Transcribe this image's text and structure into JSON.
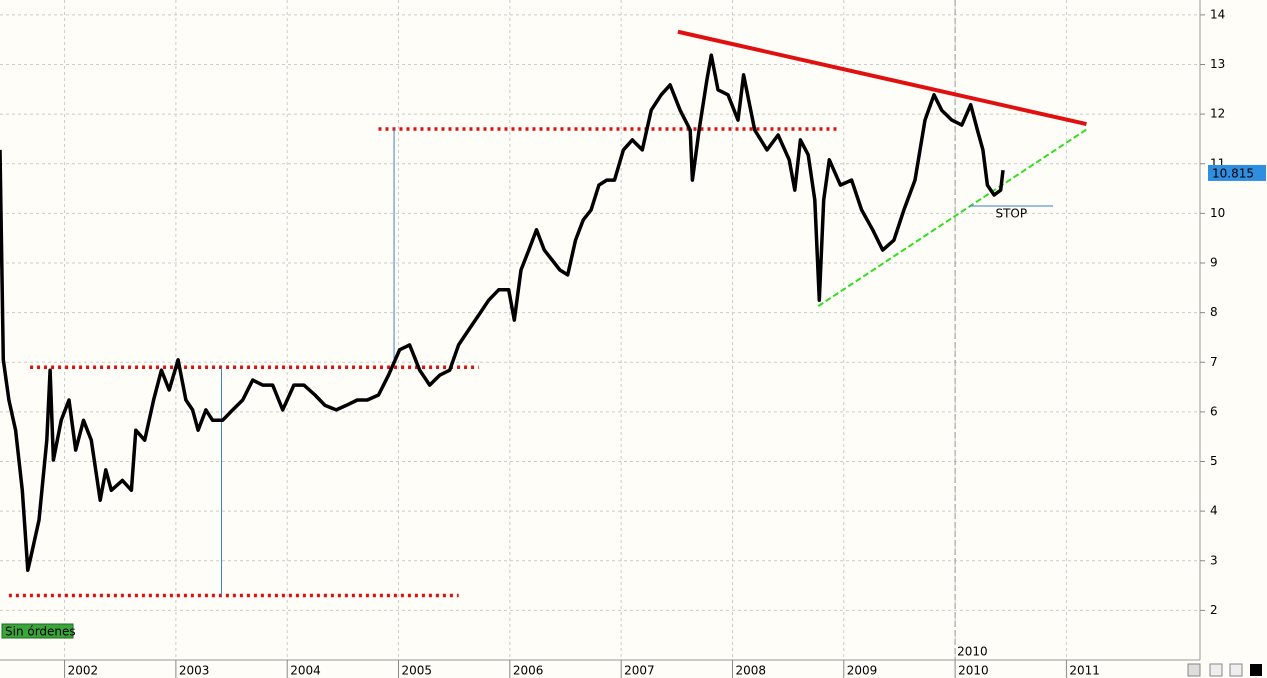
{
  "chart_data": {
    "type": "line",
    "color": "#000000",
    "x": [
      2001.42,
      2001.45,
      2001.5,
      2001.56,
      2001.62,
      2001.67,
      2001.7,
      2001.77,
      2001.84,
      2001.87,
      2001.9,
      2001.97,
      2002.04,
      2002.1,
      2002.17,
      2002.24,
      2002.32,
      2002.37,
      2002.42,
      2002.52,
      2002.6,
      2002.64,
      2002.72,
      2002.8,
      2002.87,
      2002.94,
      2003.02,
      2003.09,
      2003.15,
      2003.2,
      2003.27,
      2003.33,
      2003.42,
      2003.51,
      2003.6,
      2003.69,
      2003.78,
      2003.87,
      2003.96,
      2004.06,
      2004.15,
      2004.25,
      2004.34,
      2004.44,
      2004.53,
      2004.63,
      2004.72,
      2004.82,
      2004.91,
      2005.01,
      2005.1,
      2005.19,
      2005.28,
      2005.37,
      2005.46,
      2005.54,
      2005.63,
      2005.72,
      2005.81,
      2005.9,
      2005.99,
      2006.04,
      2006.1,
      2006.17,
      2006.24,
      2006.31,
      2006.38,
      2006.45,
      2006.52,
      2006.59,
      2006.66,
      2006.73,
      2006.8,
      2006.87,
      2006.94,
      2007.02,
      2007.1,
      2007.19,
      2007.27,
      2007.36,
      2007.44,
      2007.53,
      2007.62,
      2007.64,
      2007.7,
      2007.77,
      2007.81,
      2007.87,
      2007.96,
      2008.05,
      2008.1,
      2008.2,
      2008.31,
      2008.41,
      2008.51,
      2008.56,
      2008.61,
      2008.68,
      2008.74,
      2008.78,
      2008.82,
      2008.87,
      2008.97,
      2009.07,
      2009.16,
      2009.26,
      2009.35,
      2009.45,
      2009.54,
      2009.64,
      2009.73,
      2009.81,
      2009.88,
      2009.97,
      2010.06,
      2010.14,
      2010.2,
      2010.25,
      2010.29,
      2010.35,
      2010.41,
      2010.43
    ],
    "values": [
      11.28,
      7.05,
      6.24,
      5.63,
      4.42,
      2.81,
      3.11,
      3.82,
      5.43,
      6.84,
      5.03,
      5.83,
      6.24,
      5.23,
      5.83,
      5.43,
      4.22,
      4.83,
      4.42,
      4.62,
      4.42,
      5.63,
      5.43,
      6.24,
      6.84,
      6.44,
      7.05,
      6.24,
      6.04,
      5.63,
      6.04,
      5.83,
      5.83,
      6.04,
      6.24,
      6.64,
      6.54,
      6.54,
      6.04,
      6.54,
      6.54,
      6.34,
      6.13,
      6.04,
      6.13,
      6.24,
      6.24,
      6.34,
      6.74,
      7.25,
      7.35,
      6.84,
      6.54,
      6.74,
      6.84,
      7.35,
      7.65,
      7.95,
      8.25,
      8.46,
      8.46,
      7.85,
      8.86,
      9.26,
      9.67,
      9.26,
      9.06,
      8.86,
      8.76,
      9.46,
      9.87,
      10.07,
      10.57,
      10.67,
      10.67,
      11.28,
      11.48,
      11.28,
      12.08,
      12.39,
      12.59,
      12.08,
      11.68,
      10.67,
      11.68,
      12.69,
      13.19,
      12.49,
      12.39,
      11.88,
      12.79,
      11.68,
      11.28,
      11.58,
      11.08,
      10.47,
      11.48,
      11.18,
      10.27,
      8.25,
      10.27,
      11.08,
      10.57,
      10.67,
      10.07,
      9.67,
      9.26,
      9.46,
      10.07,
      10.67,
      11.88,
      12.39,
      12.08,
      11.88,
      11.78,
      12.19,
      11.68,
      11.28,
      10.57,
      10.37,
      10.47,
      10.87
    ],
    "xlim": [
      2001.42,
      2012.2
    ],
    "ylim": [
      1,
      14.3
    ],
    "xticks": [
      2002,
      2003,
      2004,
      2005,
      2006,
      2007,
      2008,
      2009,
      2010,
      2011
    ],
    "yticks": [
      2,
      3,
      4,
      5,
      6,
      7,
      8,
      9,
      10,
      11,
      12,
      13,
      14
    ],
    "grid": true,
    "last_price": 10.815,
    "status": "Sin órdenes",
    "period_marker": 2010,
    "annotations": [
      {
        "x": [
          2001.5,
          2005.54
        ],
        "y": [
          2.3,
          2.3
        ],
        "color": "#e01010",
        "style": "dotted"
      },
      {
        "x": [
          2001.69,
          2005.72
        ],
        "y": [
          6.9,
          6.9
        ],
        "color": "#e01010",
        "style": "dotted"
      },
      {
        "x": [
          2004.82,
          2008.95
        ],
        "y": [
          11.7,
          11.7
        ],
        "color": "#e01010",
        "style": "dotted"
      },
      {
        "x": [
          2007.51,
          2011.18
        ],
        "y": [
          13.66,
          11.8
        ],
        "color": "#e01010",
        "style": "solid"
      },
      {
        "x": [
          2008.77,
          2011.2
        ],
        "y": [
          8.13,
          11.72
        ],
        "color": "#33dd22",
        "style": "dashed"
      },
      {
        "x": [
          2003.41,
          2003.41
        ],
        "y": [
          2.3,
          6.9
        ],
        "color": "#3a7fd0",
        "style": "thin"
      },
      {
        "x": [
          2004.96,
          2004.96
        ],
        "y": [
          6.9,
          11.7
        ],
        "color": "#3a7fd0",
        "style": "thin"
      },
      {
        "x": [
          2010.13,
          2010.88
        ],
        "y": [
          10.15,
          10.15
        ],
        "color": "#3a7fd0",
        "style": "thin",
        "label": "STOP"
      }
    ]
  }
}
